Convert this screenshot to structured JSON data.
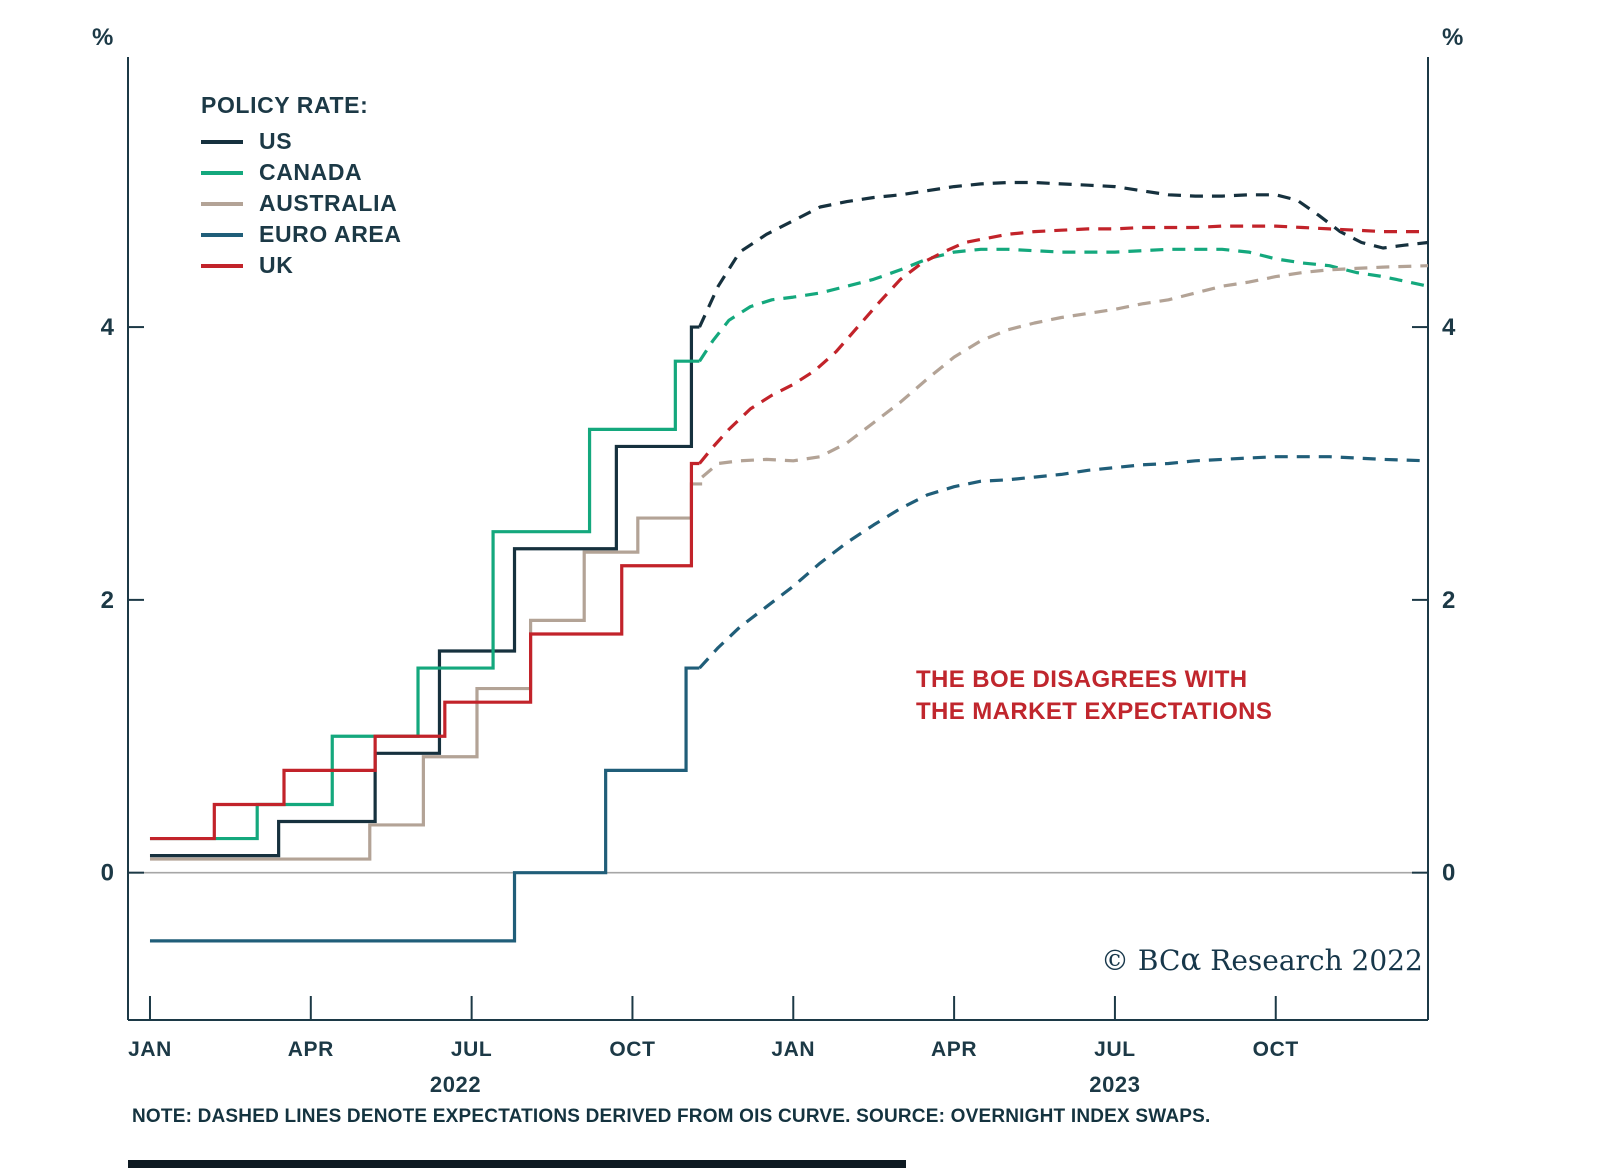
{
  "chart_data": {
    "type": "line",
    "percent_label": "%",
    "xlim": [
      -0.41,
      23.84
    ],
    "ylim": [
      -1.08,
      5.98
    ],
    "y_ticks": [
      0,
      2,
      4
    ],
    "x_ticks": [
      {
        "x": 0,
        "label": "JAN"
      },
      {
        "x": 3,
        "label": "APR"
      },
      {
        "x": 6,
        "label": "JUL"
      },
      {
        "x": 9,
        "label": "OCT"
      },
      {
        "x": 12,
        "label": "JAN"
      },
      {
        "x": 15,
        "label": "APR"
      },
      {
        "x": 18,
        "label": "JUL"
      },
      {
        "x": 21,
        "label": "OCT"
      }
    ],
    "year_labels": [
      {
        "x": 5.7,
        "label": "2022"
      },
      {
        "x": 18.0,
        "label": "2023"
      }
    ],
    "axis_color": "#1c3946",
    "zero_line_color": "#a6a6a6",
    "legend_title": "POLICY RATE:",
    "dash_note": "dashed = market expectations (OIS curve)",
    "series": [
      {
        "name": "US",
        "color": "#16313e",
        "solid": [
          [
            0,
            0.125
          ],
          [
            2.4,
            0.375
          ],
          [
            4.2,
            0.875
          ],
          [
            5.4,
            1.625
          ],
          [
            6.8,
            2.375
          ],
          [
            8.7,
            3.125
          ],
          [
            10.1,
            4.0
          ]
        ],
        "solid_end": 10.25,
        "dashed": [
          [
            10.25,
            4.0
          ],
          [
            10.6,
            4.3
          ],
          [
            11,
            4.55
          ],
          [
            11.5,
            4.68
          ],
          [
            12,
            4.78
          ],
          [
            12.5,
            4.88
          ],
          [
            13,
            4.92
          ],
          [
            13.5,
            4.95
          ],
          [
            14,
            4.97
          ],
          [
            14.5,
            5.0
          ],
          [
            15,
            5.03
          ],
          [
            15.5,
            5.05
          ],
          [
            16,
            5.06
          ],
          [
            16.5,
            5.06
          ],
          [
            17,
            5.05
          ],
          [
            17.5,
            5.04
          ],
          [
            18,
            5.03
          ],
          [
            18.5,
            5.0
          ],
          [
            19,
            4.97
          ],
          [
            19.5,
            4.96
          ],
          [
            20,
            4.96
          ],
          [
            20.5,
            4.97
          ],
          [
            21,
            4.97
          ],
          [
            21.4,
            4.93
          ],
          [
            21.8,
            4.82
          ],
          [
            22.2,
            4.7
          ],
          [
            22.6,
            4.62
          ],
          [
            23,
            4.58
          ],
          [
            23.4,
            4.6
          ],
          [
            23.84,
            4.62
          ]
        ]
      },
      {
        "name": "CANADA",
        "color": "#14a87d",
        "solid": [
          [
            0,
            0.25
          ],
          [
            2.0,
            0.5
          ],
          [
            3.4,
            1.0
          ],
          [
            5.0,
            1.5
          ],
          [
            6.4,
            2.5
          ],
          [
            8.2,
            3.25
          ],
          [
            9.8,
            3.75
          ]
        ],
        "solid_end": 10.25,
        "dashed": [
          [
            10.25,
            3.75
          ],
          [
            10.5,
            3.9
          ],
          [
            10.8,
            4.05
          ],
          [
            11.2,
            4.15
          ],
          [
            11.6,
            4.2
          ],
          [
            12,
            4.22
          ],
          [
            12.5,
            4.25
          ],
          [
            13,
            4.3
          ],
          [
            13.5,
            4.35
          ],
          [
            14,
            4.42
          ],
          [
            14.5,
            4.5
          ],
          [
            15,
            4.55
          ],
          [
            15.5,
            4.57
          ],
          [
            16,
            4.57
          ],
          [
            17,
            4.55
          ],
          [
            18,
            4.55
          ],
          [
            19,
            4.57
          ],
          [
            20,
            4.57
          ],
          [
            20.5,
            4.55
          ],
          [
            21,
            4.5
          ],
          [
            21.5,
            4.47
          ],
          [
            22,
            4.45
          ],
          [
            22.5,
            4.4
          ],
          [
            23,
            4.37
          ],
          [
            23.84,
            4.3
          ]
        ]
      },
      {
        "name": "AUSTRALIA",
        "color": "#b3a396",
        "solid": [
          [
            0,
            0.1
          ],
          [
            4.1,
            0.35
          ],
          [
            5.1,
            0.85
          ],
          [
            6.1,
            1.35
          ],
          [
            7.1,
            1.85
          ],
          [
            8.1,
            2.35
          ],
          [
            9.1,
            2.6
          ],
          [
            10.1,
            2.85
          ]
        ],
        "solid_end": 10.3,
        "dashed": [
          [
            10.3,
            2.9
          ],
          [
            10.6,
            3.0
          ],
          [
            11,
            3.02
          ],
          [
            11.5,
            3.03
          ],
          [
            12,
            3.02
          ],
          [
            12.5,
            3.05
          ],
          [
            13,
            3.15
          ],
          [
            13.5,
            3.3
          ],
          [
            14,
            3.45
          ],
          [
            14.5,
            3.62
          ],
          [
            15,
            3.78
          ],
          [
            15.5,
            3.9
          ],
          [
            16,
            3.98
          ],
          [
            16.5,
            4.03
          ],
          [
            17,
            4.07
          ],
          [
            17.5,
            4.1
          ],
          [
            18,
            4.13
          ],
          [
            18.5,
            4.17
          ],
          [
            19,
            4.2
          ],
          [
            19.5,
            4.25
          ],
          [
            20,
            4.3
          ],
          [
            20.5,
            4.33
          ],
          [
            21,
            4.37
          ],
          [
            21.5,
            4.4
          ],
          [
            22,
            4.42
          ],
          [
            22.5,
            4.43
          ],
          [
            23,
            4.44
          ],
          [
            23.84,
            4.45
          ]
        ]
      },
      {
        "name": "EURO AREA",
        "color": "#205e79",
        "solid": [
          [
            0,
            -0.5
          ],
          [
            6.8,
            0.0
          ],
          [
            8.5,
            0.75
          ],
          [
            10.0,
            1.5
          ]
        ],
        "solid_end": 10.25,
        "dashed": [
          [
            10.25,
            1.5
          ],
          [
            10.6,
            1.65
          ],
          [
            11,
            1.8
          ],
          [
            11.5,
            1.95
          ],
          [
            12,
            2.1
          ],
          [
            12.5,
            2.27
          ],
          [
            13,
            2.42
          ],
          [
            13.5,
            2.55
          ],
          [
            14,
            2.67
          ],
          [
            14.5,
            2.77
          ],
          [
            15,
            2.83
          ],
          [
            15.5,
            2.87
          ],
          [
            16,
            2.88
          ],
          [
            16.5,
            2.9
          ],
          [
            17,
            2.92
          ],
          [
            17.5,
            2.95
          ],
          [
            18,
            2.97
          ],
          [
            18.5,
            2.99
          ],
          [
            19,
            3.0
          ],
          [
            19.5,
            3.02
          ],
          [
            20,
            3.03
          ],
          [
            20.5,
            3.04
          ],
          [
            21,
            3.05
          ],
          [
            21.5,
            3.05
          ],
          [
            22,
            3.05
          ],
          [
            22.5,
            3.04
          ],
          [
            23,
            3.03
          ],
          [
            23.84,
            3.02
          ]
        ]
      },
      {
        "name": "UK",
        "color": "#c2232a",
        "solid": [
          [
            0,
            0.25
          ],
          [
            1.2,
            0.5
          ],
          [
            2.5,
            0.75
          ],
          [
            4.2,
            1.0
          ],
          [
            5.5,
            1.25
          ],
          [
            7.1,
            1.75
          ],
          [
            8.8,
            2.25
          ],
          [
            10.1,
            3.0
          ]
        ],
        "solid_end": 10.25,
        "dashed": [
          [
            10.25,
            3.0
          ],
          [
            10.5,
            3.12
          ],
          [
            10.8,
            3.25
          ],
          [
            11.2,
            3.4
          ],
          [
            11.6,
            3.5
          ],
          [
            12,
            3.58
          ],
          [
            12.4,
            3.68
          ],
          [
            12.8,
            3.82
          ],
          [
            13.2,
            4.0
          ],
          [
            13.6,
            4.18
          ],
          [
            14,
            4.35
          ],
          [
            14.4,
            4.47
          ],
          [
            14.8,
            4.55
          ],
          [
            15.2,
            4.62
          ],
          [
            15.6,
            4.65
          ],
          [
            16,
            4.68
          ],
          [
            16.5,
            4.7
          ],
          [
            17,
            4.71
          ],
          [
            17.5,
            4.72
          ],
          [
            18,
            4.72
          ],
          [
            18.5,
            4.73
          ],
          [
            19,
            4.73
          ],
          [
            19.5,
            4.73
          ],
          [
            20,
            4.74
          ],
          [
            20.5,
            4.74
          ],
          [
            21,
            4.74
          ],
          [
            21.5,
            4.73
          ],
          [
            22,
            4.72
          ],
          [
            22.5,
            4.71
          ],
          [
            23,
            4.7
          ],
          [
            23.84,
            4.7
          ]
        ]
      }
    ],
    "annotation": {
      "line1": "THE BOE DISAGREES WITH",
      "line2": "THE MARKET EXPECTATIONS",
      "color": "#c0262d"
    },
    "copyright_prefix": "© BC",
    "copyright_alpha": "α",
    "copyright_suffix": " Research 2022",
    "note": "NOTE: DASHED LINES DENOTE EXPECTATIONS DERIVED FROM OIS CURVE. SOURCE: OVERNIGHT INDEX SWAPS."
  }
}
